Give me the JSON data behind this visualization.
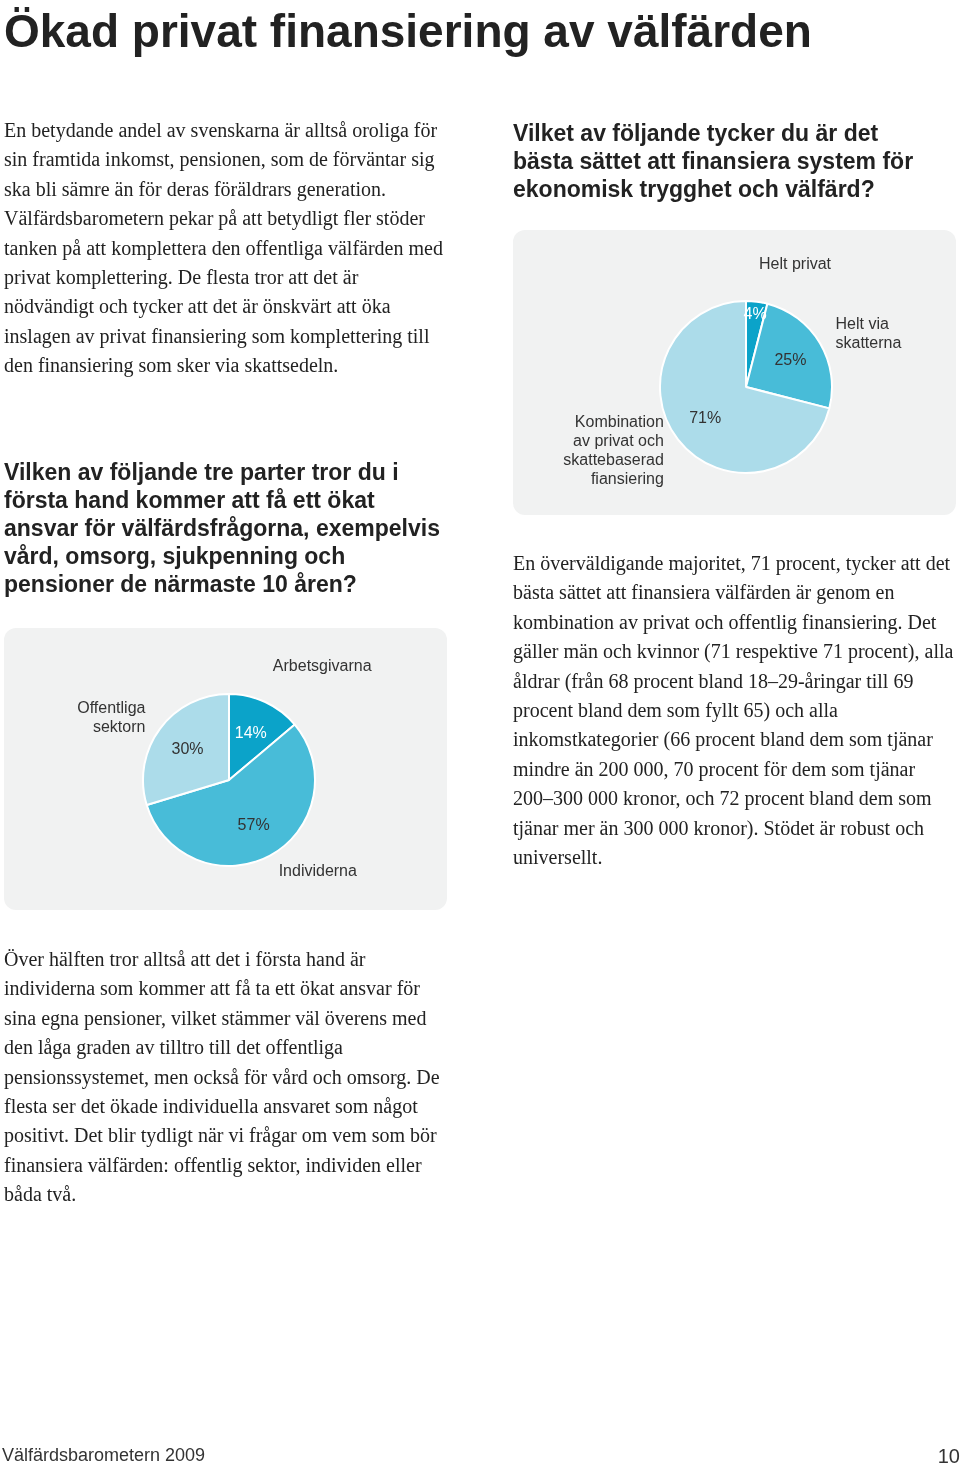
{
  "chart_data": [
    {
      "type": "pie",
      "title": "Ökad privat finansiering av välfärden",
      "subtitle": "Vilken av följande tre parter tror du i första hand kommer att få ett ökat ansvar för välfärdsfrågorna, exempelvis vård, omsorg, sjukpenning och pensioner de närmaste 10 åren?",
      "categories": [
        "Arbetsgivarna",
        "Individerna",
        "Offentliga sektorn"
      ],
      "values": [
        14,
        57,
        30
      ],
      "value_labels": [
        "14%",
        "57%",
        "30%"
      ],
      "colors": [
        "#0ba3c9",
        "#48bcd8",
        "#acdcea"
      ],
      "annotations": [
        "En betydande andel av svenskarna är alltså oroliga för sin framtida inkomst, pensionen, som de förväntar sig ska bli sämre än för deras föräldrars generation. Välfärdsbarometern pekar på att betydligt fler stöder tanken på att komplettera den offentliga välfärden med privat komplettering. De flesta tror att det är nödvändigt och tycker att det är önskvärt att öka inslagen av privat finansiering som komplettering till den finansiering som sker via skattsedeln.",
        "Över hälften tror alltså att det i första hand är individerna som kommer att få ta ett ökat ansvar för sina egna pensioner, vilket stämmer väl överens med den låga graden av tilltro till det offentliga pensionssystemet, men också för vård och omsorg. De flesta ser det ökade individuella ansvaret som något positivt. Det blir tydligt när vi frågar om vem som bör finansiera välfärden: offentlig sektor, individen eller båda två.",
        "Välfärdsbarometern 2009",
        "10"
      ]
    },
    {
      "type": "pie",
      "title": "Vilket av följande tycker du är det bästa sättet att finansiera system för ekonomisk trygghet och välfärd?",
      "categories": [
        "Helt privat",
        "Helt via skatterna",
        "Kombination av privat och skattebaserad fiansiering"
      ],
      "values": [
        4,
        25,
        71
      ],
      "value_labels": [
        "4%",
        "25%",
        "71%"
      ],
      "colors": [
        "#0ba3c9",
        "#48bcd8",
        "#acdcea"
      ],
      "annotations": [
        "En överväldigande majoritet, 71 procent, tycker att det bästa sättet att finansiera välfärden är genom en kombination av privat och offentlig finansiering. Det gäller män och kvinnor (71 respektive 71 procent), alla åldrar (från 68 procent bland 18–29-åringar till 69 procent bland dem som fyllt 65) och alla inkomstkategorier (66 procent bland dem som tjänar mindre än 200 000, 70 procent för dem som tjänar 200–300 000 kronor, och 72 procent bland dem som tjänar mer än 300 000 kronor). Stödet är robust och universellt."
      ]
    }
  ]
}
